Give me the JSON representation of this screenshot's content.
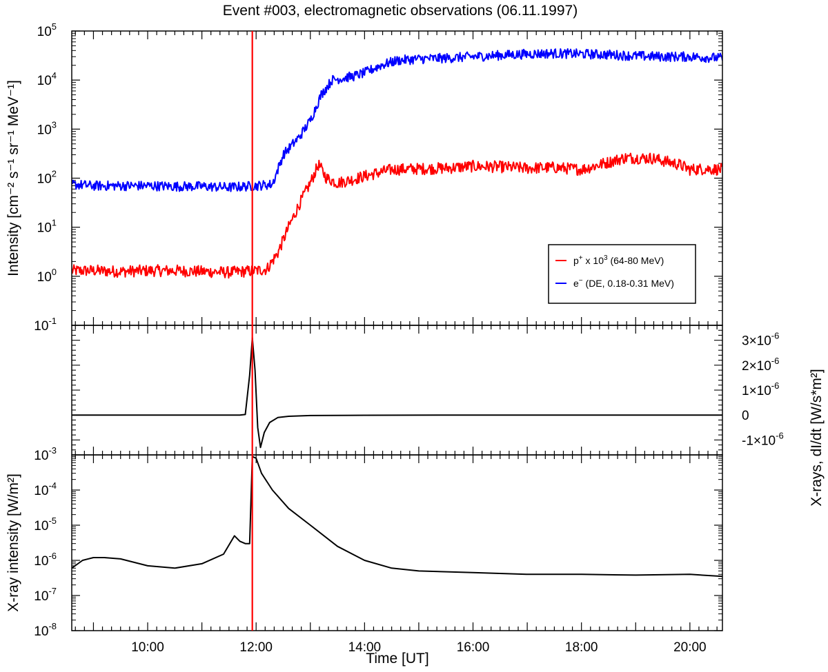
{
  "chart_data": {
    "title": "Event #003, electromagnetic observations (06.11.1997)",
    "x_axis": {
      "label": "Time [UT]",
      "range_hours": [
        8.6,
        20.6
      ],
      "ticks": [
        {
          "value": 10,
          "label": "10:00"
        },
        {
          "value": 12,
          "label": "12:00"
        },
        {
          "value": 14,
          "label": "14:00"
        },
        {
          "value": 16,
          "label": "16:00"
        },
        {
          "value": 18,
          "label": "18:00"
        },
        {
          "value": 20,
          "label": "20:00"
        }
      ]
    },
    "event_marker": {
      "x": 11.93,
      "color": "#ff0000"
    },
    "panels": [
      {
        "id": "particles",
        "type": "line",
        "scale": "log",
        "ylabel": "Intensity [cm⁻² s⁻¹ sr⁻¹ MeV⁻¹]",
        "ylim": [
          0.1,
          100000
        ],
        "yticks": [
          {
            "value": 100000,
            "base": "10",
            "exp": "5"
          },
          {
            "value": 10000,
            "base": "10",
            "exp": "4"
          },
          {
            "value": 1000,
            "base": "10",
            "exp": "3"
          },
          {
            "value": 100,
            "base": "10",
            "exp": "2"
          },
          {
            "value": 10,
            "base": "10",
            "exp": "1"
          },
          {
            "value": 1,
            "base": "10",
            "exp": "0"
          },
          {
            "value": 0.1,
            "base": "10",
            "exp": "-1"
          }
        ],
        "legend": {
          "position": "bottom-right",
          "entries": [
            {
              "prefix": "p",
              "sup1": "+",
              "mid": " x 10",
              "sup2": "3",
              "suffix": " (64-80 MeV)",
              "color": "#ff0000"
            },
            {
              "prefix": "e",
              "sup1": "−",
              "mid": "",
              "sup2": "",
              "suffix": " (DE, 0.18-0.31 MeV)",
              "color": "#0000ff"
            }
          ]
        },
        "series": [
          {
            "color": "#ff0000",
            "noise": 0.12,
            "x": [
              8.6,
              9.0,
              9.5,
              10.0,
              10.5,
              11.0,
              11.5,
              12.0,
              12.2,
              12.4,
              12.6,
              12.8,
              13.0,
              13.15,
              13.3,
              13.5,
              13.8,
              14.0,
              14.5,
              15.0,
              15.5,
              16.0,
              16.5,
              17.0,
              17.5,
              18.0,
              18.8,
              19.3,
              19.8,
              20.0,
              20.3,
              20.6
            ],
            "y": [
              1.3,
              1.3,
              1.25,
              1.3,
              1.3,
              1.25,
              1.2,
              1.3,
              1.4,
              3,
              10,
              30,
              80,
              190,
              100,
              80,
              95,
              110,
              150,
              155,
              160,
              175,
              170,
              160,
              165,
              150,
              260,
              255,
              190,
              150,
              155,
              150
            ]
          },
          {
            "color": "#0000ff",
            "noise": 0.1,
            "x": [
              8.6,
              9.0,
              9.5,
              10.0,
              10.5,
              11.0,
              11.5,
              12.0,
              12.3,
              12.5,
              12.8,
              13.0,
              13.2,
              13.4,
              13.8,
              14.0,
              14.3,
              14.6,
              15.0,
              15.5,
              16.0,
              16.5,
              17.0,
              17.5,
              18.0,
              18.5,
              19.0,
              19.5,
              20.0,
              20.6
            ],
            "y": [
              75,
              70,
              70,
              70,
              68,
              68,
              65,
              70,
              75,
              300,
              700,
              1500,
              5000,
              10000,
              12000,
              14000,
              20000,
              25000,
              27000,
              28000,
              30000,
              32000,
              34000,
              35000,
              34000,
              33000,
              31000,
              30000,
              30000,
              28000
            ]
          }
        ]
      },
      {
        "id": "xray-derivative",
        "type": "line",
        "scale": "linear",
        "ylabel": "X-rays, dI/dt [W/s*m²]",
        "ylim": [
          -1.6e-06,
          3.6e-06
        ],
        "yticks": [
          {
            "value": 3e-06,
            "label": "3×10",
            "exp": "-6"
          },
          {
            "value": 2e-06,
            "label": "2×10",
            "exp": "-6"
          },
          {
            "value": 1e-06,
            "label": "1×10",
            "exp": "-6"
          },
          {
            "value": 0,
            "label": "0",
            "exp": ""
          },
          {
            "value": -1e-06,
            "label": "-1×10",
            "exp": "-6"
          }
        ],
        "series": [
          {
            "color": "#000000",
            "noise": 0,
            "x": [
              8.6,
              11.7,
              11.8,
              11.88,
              11.93,
              11.98,
              12.03,
              12.08,
              12.15,
              12.25,
              12.4,
              12.6,
              13.0,
              14.0,
              16.0,
              20.6
            ],
            "y": [
              0,
              0,
              2e-08,
              1.6e-06,
              3.1e-06,
              1.8e-06,
              -5e-07,
              -1.3e-06,
              -7e-07,
              -3e-07,
              -1e-07,
              -5e-08,
              -2e-08,
              -1e-08,
              0,
              0
            ]
          }
        ]
      },
      {
        "id": "xray-flux",
        "type": "line",
        "scale": "log",
        "ylabel": "X-ray intensity [W/m²]",
        "ylim": [
          1e-08,
          0.001
        ],
        "yticks": [
          {
            "value": 0.001,
            "base": "10",
            "exp": "-3"
          },
          {
            "value": 0.0001,
            "base": "10",
            "exp": "-4"
          },
          {
            "value": 1e-05,
            "base": "10",
            "exp": "-5"
          },
          {
            "value": 1e-06,
            "base": "10",
            "exp": "-6"
          },
          {
            "value": 1e-07,
            "base": "10",
            "exp": "-7"
          },
          {
            "value": 1e-08,
            "base": "10",
            "exp": "-8"
          }
        ],
        "series": [
          {
            "color": "#000000",
            "noise": 0,
            "x": [
              8.6,
              8.8,
              9.0,
              9.2,
              9.5,
              10.0,
              10.5,
              11.0,
              11.4,
              11.6,
              11.7,
              11.8,
              11.88,
              11.93,
              12.0,
              12.1,
              12.3,
              12.6,
              13.0,
              13.5,
              14.0,
              14.5,
              15.0,
              16.0,
              17.0,
              18.0,
              19.0,
              20.0,
              20.6
            ],
            "y": [
              6e-07,
              1e-06,
              1.2e-06,
              1.2e-06,
              1.1e-06,
              7e-07,
              6e-07,
              8e-07,
              1.5e-06,
              5e-06,
              3.5e-06,
              3e-06,
              3e-06,
              0.0009,
              0.0008,
              0.0003,
              0.0001,
              3e-05,
              1e-05,
              2.5e-06,
              1e-06,
              6e-07,
              5e-07,
              4.5e-07,
              4e-07,
              4e-07,
              3.8e-07,
              4e-07,
              3.5e-07
            ]
          }
        ]
      }
    ]
  }
}
